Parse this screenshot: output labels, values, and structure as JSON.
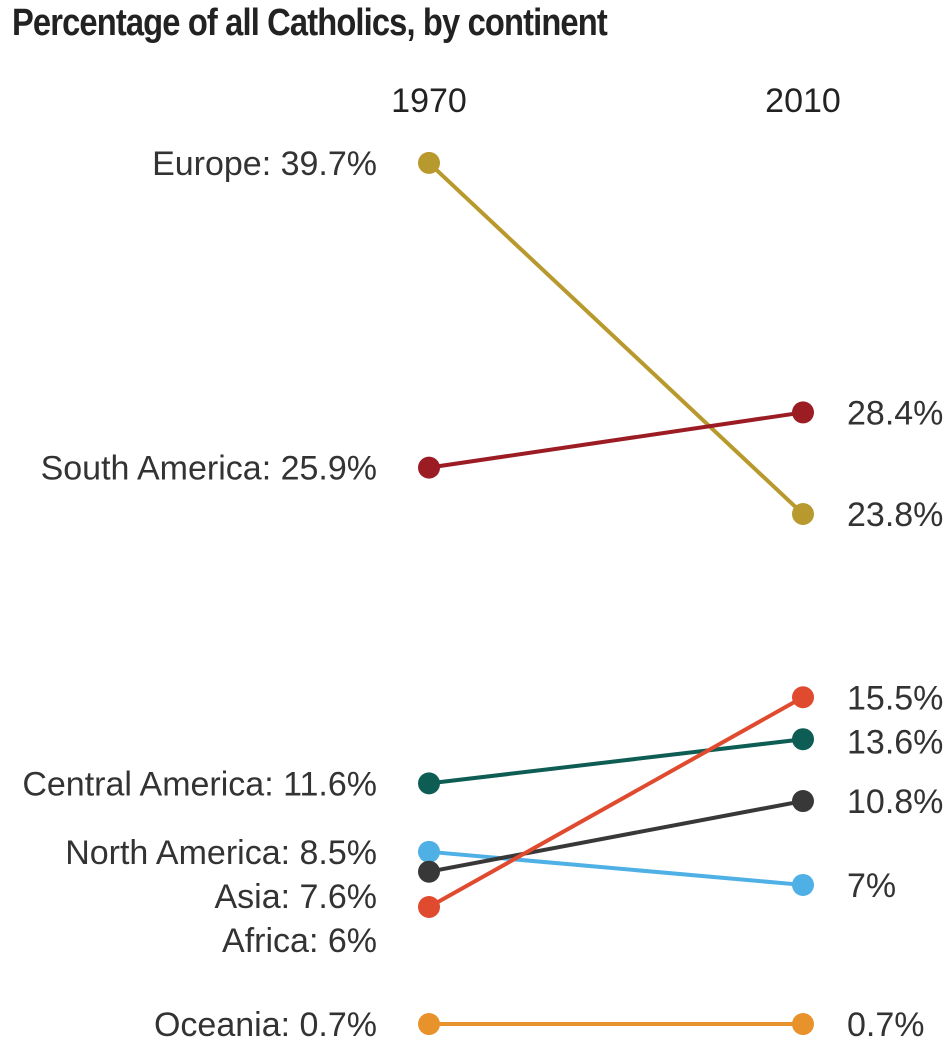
{
  "chart_data": {
    "type": "line",
    "subtype": "slope",
    "title": "Percentage of all Catholics, by continent",
    "x": [
      "1970",
      "2010"
    ],
    "unit": "%",
    "series": [
      {
        "name": "Europe",
        "values": [
          39.7,
          23.8
        ],
        "color": "#b8992e",
        "left_label": "Europe: 39.7%",
        "right_label": "23.8%"
      },
      {
        "name": "South America",
        "values": [
          25.9,
          28.4
        ],
        "color": "#9c1c24",
        "left_label": "South America: 25.9%",
        "right_label": "28.4%"
      },
      {
        "name": "Central America",
        "values": [
          11.6,
          13.6
        ],
        "color": "#0e5d55",
        "left_label": "Central America: 11.6%",
        "right_label": "13.6%"
      },
      {
        "name": "North America",
        "values": [
          8.5,
          7
        ],
        "color": "#4fb0e6",
        "left_label": "North America: 8.5%",
        "right_label": "7%"
      },
      {
        "name": "Asia",
        "values": [
          7.6,
          10.8
        ],
        "color": "#383838",
        "left_label": "Asia: 7.6%",
        "right_label": "10.8%"
      },
      {
        "name": "Africa",
        "values": [
          6,
          15.5
        ],
        "color": "#e04a2e",
        "left_label": "Africa: 6%",
        "right_label": "15.5%"
      },
      {
        "name": "Oceania",
        "values": [
          0.7,
          0.7
        ],
        "color": "#e8922c",
        "left_label": "Oceania: 0.7%",
        "right_label": "0.7%"
      }
    ]
  }
}
